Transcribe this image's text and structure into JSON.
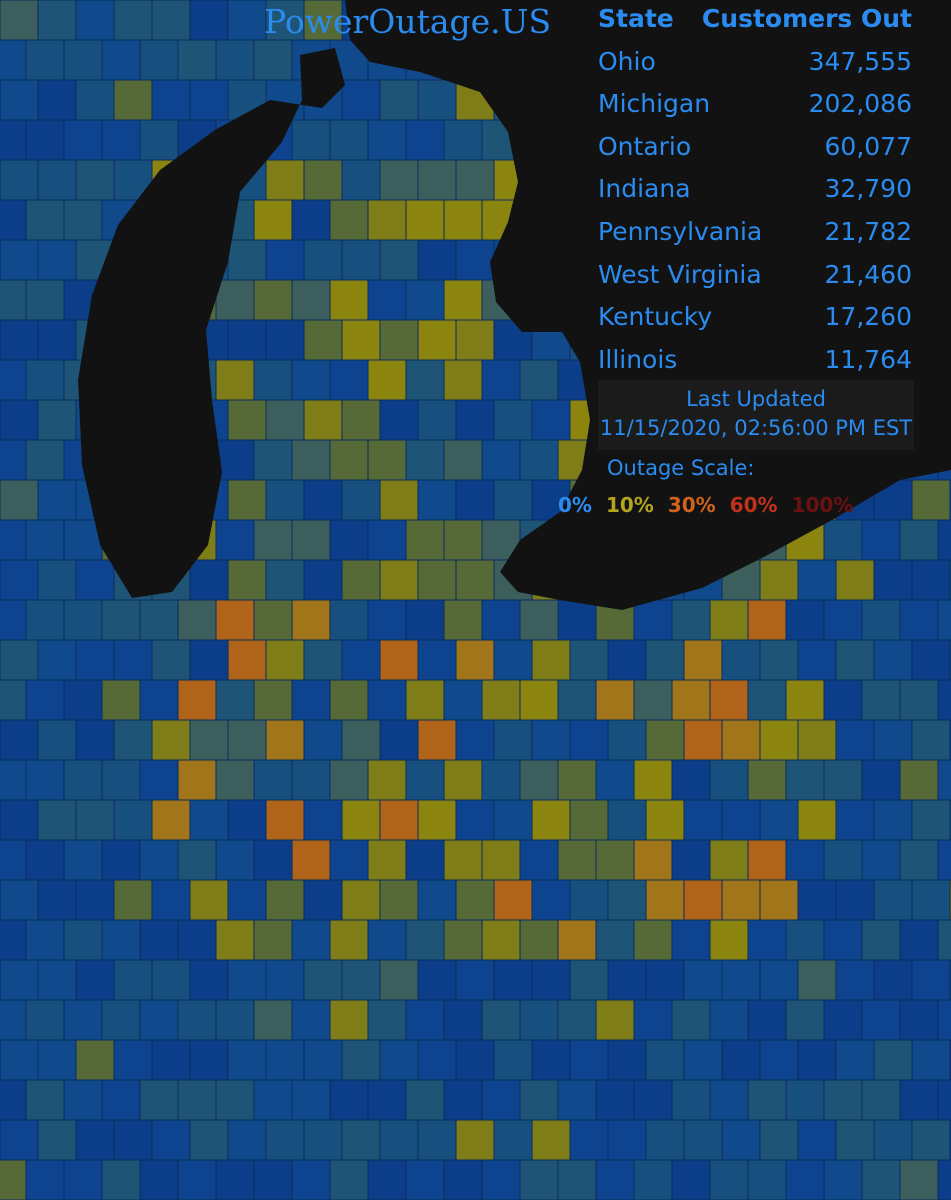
{
  "header": {
    "title": "PowerOutage.US"
  },
  "table": {
    "columns": [
      "State",
      "Customers Out"
    ],
    "rows": [
      [
        "Ohio",
        "347,555"
      ],
      [
        "Michigan",
        "202,086"
      ],
      [
        "Ontario",
        "60,077"
      ],
      [
        "Indiana",
        "32,790"
      ],
      [
        "Pennsylvania",
        "21,782"
      ],
      [
        "West Virginia",
        "21,460"
      ],
      [
        "Kentucky",
        "17,260"
      ],
      [
        "Illinois",
        "11,764"
      ]
    ]
  },
  "updated": {
    "label": "Last Updated",
    "timestamp": "11/15/2020, 02:56:00 PM EST"
  },
  "scale": {
    "title": "Outage Scale:",
    "levels": [
      {
        "label": "0%",
        "color": "#2a8cf0"
      },
      {
        "label": "10%",
        "color": "#b3a51c"
      },
      {
        "label": "30%",
        "color": "#d0621c"
      },
      {
        "label": "60%",
        "color": "#c0321a"
      },
      {
        "label": "100%",
        "color": "#6a1212"
      }
    ]
  }
}
